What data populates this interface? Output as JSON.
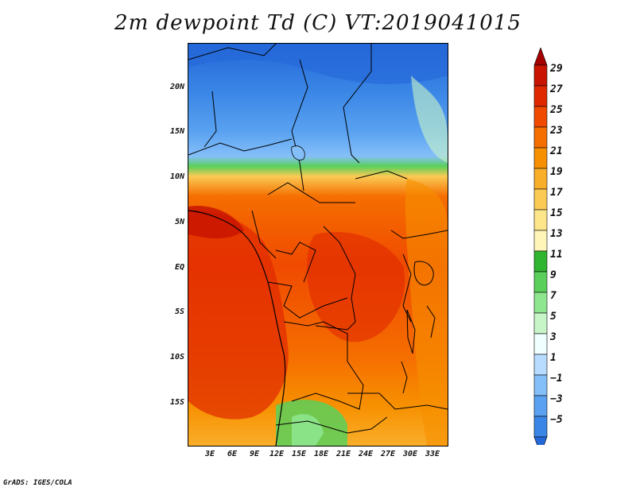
{
  "title": "2m dewpoint Td (C) VT:2019041015",
  "credit": "GrADS: IGES/COLA",
  "map": {
    "lat_labels": [
      "20N",
      "15N",
      "10N",
      "5N",
      "EQ",
      "5S",
      "10S",
      "15S"
    ],
    "lat_values": [
      20,
      15,
      10,
      5,
      0,
      -5,
      -10,
      -15
    ],
    "lon_labels": [
      "3E",
      "6E",
      "9E",
      "12E",
      "15E",
      "18E",
      "21E",
      "24E",
      "27E",
      "30E",
      "33E"
    ],
    "lon_values": [
      3,
      6,
      9,
      12,
      15,
      18,
      21,
      24,
      27,
      30,
      33
    ],
    "lon_range": [
      0,
      35
    ],
    "lat_range": [
      -20,
      25
    ]
  },
  "colorbar": {
    "labels": [
      "29",
      "27",
      "25",
      "23",
      "21",
      "19",
      "17",
      "15",
      "13",
      "11",
      "9",
      "7",
      "5",
      "3",
      "1",
      "−1",
      "−3",
      "−5"
    ],
    "colors": [
      "#a50000",
      "#c81400",
      "#e02800",
      "#f04a00",
      "#f56e00",
      "#f79000",
      "#f9ae2a",
      "#fbca55",
      "#fde58a",
      "#fff5b8",
      "#2fb52f",
      "#5ad05a",
      "#8ee68e",
      "#c8f5c8",
      "#f0ffff",
      "#b8dcff",
      "#85bff9",
      "#5aa2f1",
      "#3a86e6",
      "#2468d8"
    ]
  }
}
